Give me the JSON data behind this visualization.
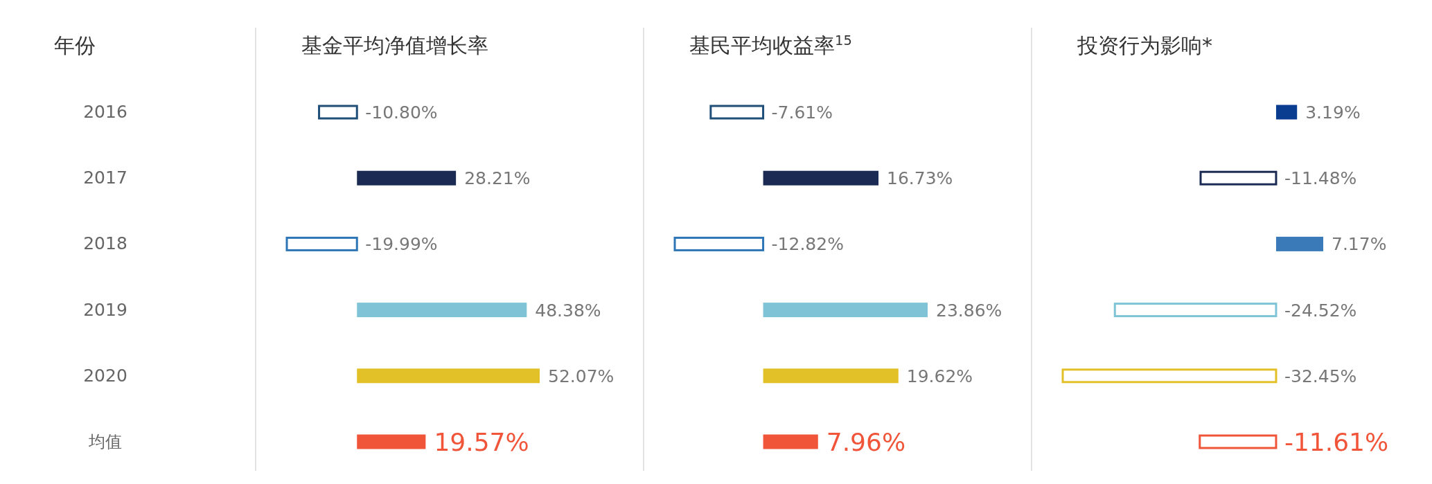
{
  "chart_data": [
    {
      "type": "bar",
      "orientation": "horizontal",
      "title": "基金平均净值增长率",
      "ylabel": "年份",
      "categories": [
        "2016",
        "2017",
        "2018",
        "2019",
        "2020",
        "均值"
      ],
      "values": [
        -10.8,
        28.21,
        -19.99,
        48.38,
        52.07,
        19.57
      ],
      "value_labels": [
        "-10.80%",
        "28.21%",
        "-19.99%",
        "48.38%",
        "52.07%",
        "19.57%"
      ],
      "colors": [
        "#1f4e79",
        "#1b2a52",
        "#2e75b6",
        "#7ec4d6",
        "#e2c027",
        "#f0553a"
      ],
      "tick_labels": "y"
    },
    {
      "type": "bar",
      "orientation": "horizontal",
      "title": "基民平均收益率$^{15}$",
      "values": [
        -7.61,
        16.73,
        -12.82,
        23.86,
        19.62,
        7.96
      ],
      "value_labels": [
        "-7.61%",
        "16.73%",
        "-12.82%",
        "23.86%",
        "19.62%",
        "7.96%"
      ],
      "colors": [
        "#1f4e79",
        "#1b2a52",
        "#2e75b6",
        "#7ec4d6",
        "#e2c027",
        "#f0553a"
      ],
      "tick_labels": false
    },
    {
      "type": "bar",
      "orientation": "horizontal",
      "title": "投资行为影响*",
      "values": [
        3.19,
        -11.48,
        7.17,
        -24.52,
        -32.45,
        -11.61
      ],
      "value_labels": [
        "3.19%",
        "-11.48%",
        "7.17%",
        "-24.52%",
        "-32.45%",
        "-11.61%"
      ],
      "colors": [
        "#0a3d8f",
        "#1b2a52",
        "#3a7ab8",
        "#7ec4d6",
        "#e2c027",
        "#f0553a"
      ],
      "tick_labels": false
    }
  ]
}
